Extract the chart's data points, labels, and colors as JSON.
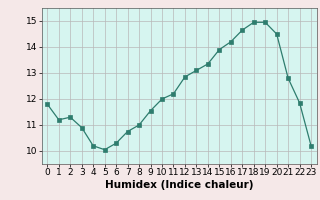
{
  "x": [
    0,
    1,
    2,
    3,
    4,
    5,
    6,
    7,
    8,
    9,
    10,
    11,
    12,
    13,
    14,
    15,
    16,
    17,
    18,
    19,
    20,
    21,
    22,
    23
  ],
  "y": [
    11.8,
    11.2,
    11.3,
    10.9,
    10.2,
    10.05,
    10.3,
    10.75,
    11.0,
    11.55,
    12.0,
    12.2,
    12.85,
    13.1,
    13.35,
    13.9,
    14.2,
    14.65,
    14.95,
    14.95,
    14.5,
    12.8,
    11.85,
    10.2
  ],
  "line_color": "#2e7d6e",
  "marker": "s",
  "marker_size": 2.5,
  "xlabel": "Humidex (Indice chaleur)",
  "ylim": [
    9.5,
    15.5
  ],
  "xlim": [
    -0.5,
    23.5
  ],
  "yticks": [
    10,
    11,
    12,
    13,
    14,
    15
  ],
  "xticks": [
    0,
    1,
    2,
    3,
    4,
    5,
    6,
    7,
    8,
    9,
    10,
    11,
    12,
    13,
    14,
    15,
    16,
    17,
    18,
    19,
    20,
    21,
    22,
    23
  ],
  "bg_plot": "#d6f5f0",
  "bg_fig": "#f5e8e8",
  "grid_color": "#b8b8b8",
  "tick_labelsize": 6.5,
  "xlabel_fontsize": 7.5
}
